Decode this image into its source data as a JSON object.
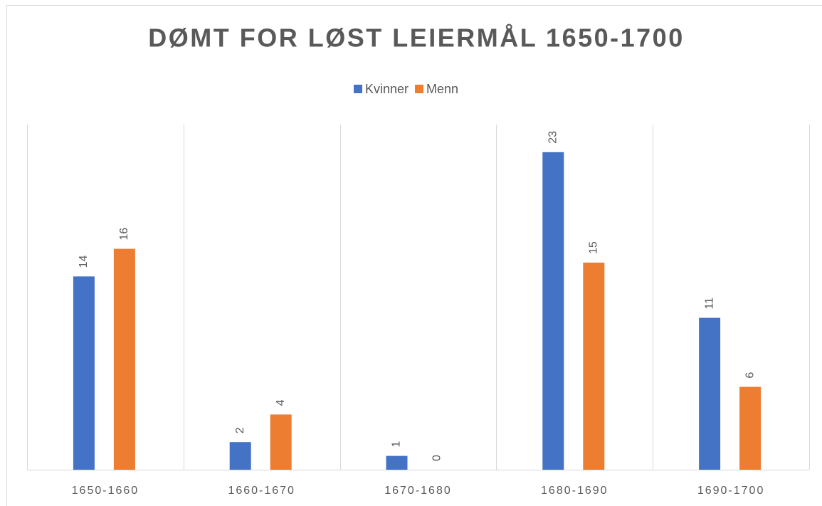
{
  "chart_data": {
    "type": "bar",
    "title": "DØMT FOR LØST LEIERMÅL 1650-1700",
    "categories": [
      "1650-1660",
      "1660-1670",
      "1670-1680",
      "1680-1690",
      "1690-1700"
    ],
    "series": [
      {
        "name": "Kvinner",
        "color": "#4472c4",
        "values": [
          14,
          2,
          1,
          23,
          11
        ]
      },
      {
        "name": "Menn",
        "color": "#ed7d31",
        "values": [
          16,
          4,
          0,
          15,
          6
        ]
      }
    ],
    "ylim": [
      0,
      25
    ],
    "legend": "top"
  }
}
